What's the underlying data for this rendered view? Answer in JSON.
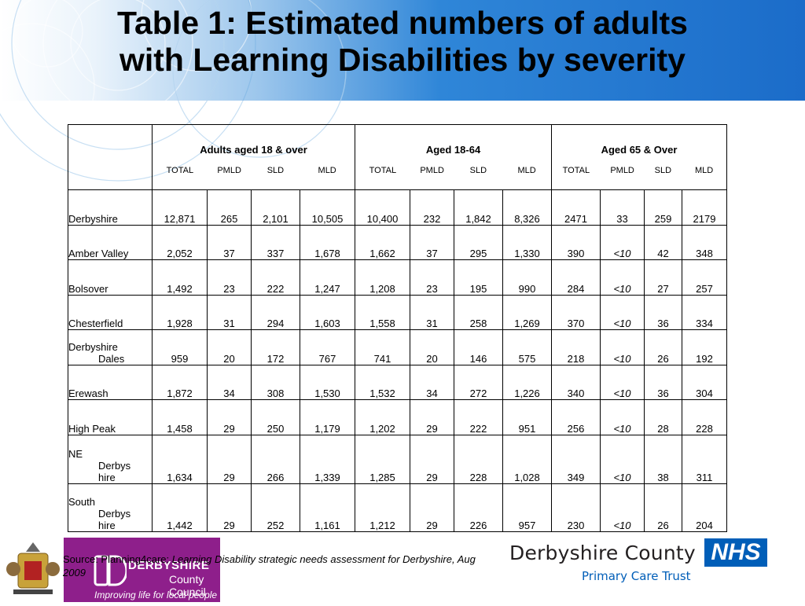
{
  "title": {
    "line1": "Table 1: Estimated numbers of adults",
    "line2": "with Learning Disabilities by severity"
  },
  "table": {
    "groups": [
      "Adults aged 18 & over",
      "Aged 18-64",
      "Aged 65 & Over"
    ],
    "subheaders": [
      "TOTAL",
      "PMLD",
      "SLD",
      "MLD"
    ],
    "rows": [
      {
        "label": [
          "Derbyshire"
        ],
        "values": [
          "12,871",
          "265",
          "2,101",
          "10,505",
          "10,400",
          "232",
          "1,842",
          "8,326",
          "2471",
          "33",
          "259",
          "2179"
        ]
      },
      {
        "label": [
          "Amber Valley"
        ],
        "values": [
          "2,052",
          "37",
          "337",
          "1,678",
          "1,662",
          "37",
          "295",
          "1,330",
          "390",
          "<10",
          "42",
          "348"
        ]
      },
      {
        "label": [
          "Bolsover"
        ],
        "values": [
          "1,492",
          "23",
          "222",
          "1,247",
          "1,208",
          "23",
          "195",
          "990",
          "284",
          "<10",
          "27",
          "257"
        ]
      },
      {
        "label": [
          "Chesterfield"
        ],
        "values": [
          "1,928",
          "31",
          "294",
          "1,603",
          "1,558",
          "31",
          "258",
          "1,269",
          "370",
          "<10",
          "36",
          "334"
        ]
      },
      {
        "label": [
          "Derbyshire",
          "Dales"
        ],
        "values": [
          "959",
          "20",
          "172",
          "767",
          "741",
          "20",
          "146",
          "575",
          "218",
          "<10",
          "26",
          "192"
        ]
      },
      {
        "label": [
          "Erewash"
        ],
        "values": [
          "1,872",
          "34",
          "308",
          "1,530",
          "1,532",
          "34",
          "272",
          "1,226",
          "340",
          "<10",
          "36",
          "304"
        ]
      },
      {
        "label": [
          "High Peak"
        ],
        "values": [
          "1,458",
          "29",
          "250",
          "1,179",
          "1,202",
          "29",
          "222",
          "951",
          "256",
          "<10",
          "28",
          "228"
        ]
      },
      {
        "label": [
          "NE",
          "Derbys",
          "hire"
        ],
        "values": [
          "1,634",
          "29",
          "266",
          "1,339",
          "1,285",
          "29",
          "228",
          "1,028",
          "349",
          "<10",
          "38",
          "311"
        ]
      },
      {
        "label": [
          "South",
          "Derbys",
          "hire"
        ],
        "values": [
          "1,442",
          "29",
          "252",
          "1,161",
          "1,212",
          "29",
          "226",
          "957",
          "230",
          "<10",
          "26",
          "204"
        ]
      }
    ]
  },
  "source": {
    "prefix": "Source: Planning4care: ",
    "italic": "Learning Disability strategic needs assessment for Derbyshire, Aug 2009"
  },
  "logos": {
    "council_line1": "DERBYSHIRE",
    "council_line2": "County Council",
    "council_tagline": "Improving life for local people",
    "pct_name": "Derbyshire County",
    "pct_sub": "Primary Care Trust",
    "nhs": "NHS"
  },
  "colors": {
    "banner_blue": "#1b6cc9",
    "council_purple": "#8e1f8b",
    "nhs_blue": "#005eb8"
  }
}
